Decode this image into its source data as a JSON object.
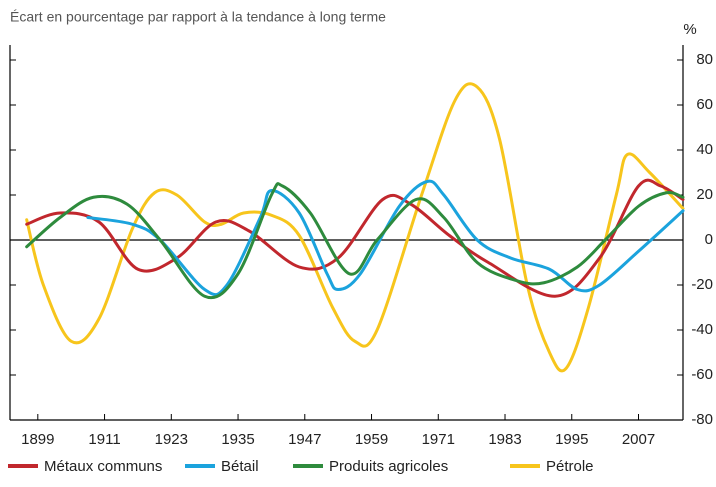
{
  "chart_data": {
    "type": "line",
    "title": "Écart en pourcentage par rapport à la tendance à long terme",
    "ylabel": "%",
    "xlim": [
      1894,
      2015
    ],
    "xticks": [
      1899,
      1911,
      1923,
      1935,
      1947,
      1959,
      1971,
      1983,
      1995,
      2007
    ],
    "ylim": [
      -80,
      80
    ],
    "yticks": [
      80,
      60,
      40,
      20,
      0,
      -20,
      -40,
      -60,
      -80
    ],
    "legend": "bottom",
    "series": [
      {
        "name": "Métaux communs",
        "color": "#c1272d",
        "x": [
          1897,
          1903,
          1910,
          1917,
          1924,
          1931,
          1937,
          1946,
          1953,
          1961,
          1966,
          1973,
          1980,
          1992,
          2000,
          2007,
          2011,
          2015
        ],
        "values": [
          7,
          12,
          8,
          -13,
          -8,
          8,
          4,
          -12,
          -8,
          18,
          16,
          2,
          -10,
          -25,
          -8,
          24,
          24,
          18
        ]
      },
      {
        "name": "Bétail",
        "color": "#1ba3dd",
        "x": [
          1908,
          1916,
          1921,
          1929,
          1933,
          1939,
          1941,
          1946,
          1951,
          1953,
          1957,
          1964,
          1969,
          1972,
          1978,
          1984,
          1991,
          1996,
          2000,
          2007,
          2015
        ],
        "values": [
          10,
          7,
          0,
          -22,
          -20,
          10,
          22,
          12,
          -15,
          -22,
          -15,
          15,
          26,
          20,
          0,
          -8,
          -13,
          -22,
          -20,
          -5,
          13
        ]
      },
      {
        "name": "Produits agricoles",
        "color": "#2e8b3d",
        "x": [
          1897,
          1903,
          1909,
          1915,
          1921,
          1929,
          1935,
          1941,
          1943,
          1948,
          1955,
          1960,
          1967,
          1972,
          1978,
          1985,
          1990,
          1996,
          2001,
          2007,
          2012,
          2015
        ],
        "values": [
          -3,
          10,
          19,
          16,
          0,
          -25,
          -15,
          20,
          24,
          12,
          -15,
          0,
          18,
          10,
          -10,
          -18,
          -19,
          -12,
          0,
          15,
          21,
          19
        ]
      },
      {
        "name": "Pétrole",
        "color": "#f7c51c",
        "x": [
          1897,
          1900,
          1905,
          1910,
          1916,
          1920,
          1924,
          1929,
          1932,
          1936,
          1941,
          1946,
          1952,
          1956,
          1960,
          1968,
          1974,
          1978,
          1982,
          1987,
          1991,
          1994,
          1998,
          2003,
          2005,
          2009,
          2015
        ],
        "values": [
          9,
          -20,
          -45,
          -35,
          5,
          21,
          20,
          8,
          7,
          12,
          11,
          2,
          -30,
          -45,
          -40,
          20,
          62,
          68,
          45,
          -20,
          -50,
          -57,
          -30,
          20,
          38,
          30,
          14
        ]
      }
    ]
  }
}
